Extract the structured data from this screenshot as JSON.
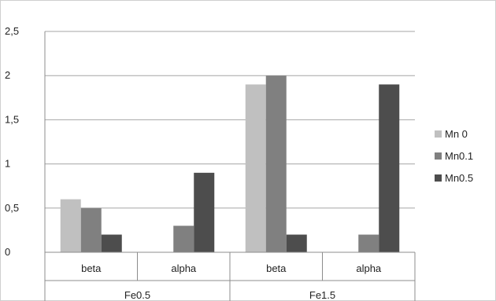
{
  "chart_data": {
    "type": "bar",
    "title": "",
    "xlabel": "",
    "ylabel": "",
    "ylim": [
      0,
      2.5
    ],
    "y_ticks": [
      0,
      0.5,
      1,
      1.5,
      2,
      2.5
    ],
    "y_tick_labels": [
      "0",
      "0,5",
      "1",
      "1,5",
      "2",
      "2,5"
    ],
    "grid": true,
    "legend_position": "right",
    "categories": [
      "beta",
      "alpha",
      "beta",
      "alpha"
    ],
    "groups": [
      {
        "label": "Fe0.5",
        "span": [
          0,
          1
        ]
      },
      {
        "label": "Fe1.5",
        "span": [
          2,
          3
        ]
      }
    ],
    "series": [
      {
        "name": "Mn 0",
        "color": "#c0c0c0",
        "values": [
          0.6,
          0,
          1.9,
          0
        ]
      },
      {
        "name": "Mn0.1",
        "color": "#808080",
        "values": [
          0.5,
          0.3,
          2.0,
          0.2
        ]
      },
      {
        "name": "Mn0.5",
        "color": "#4d4d4d",
        "values": [
          0.2,
          0.9,
          0.2,
          1.9
        ]
      }
    ]
  }
}
